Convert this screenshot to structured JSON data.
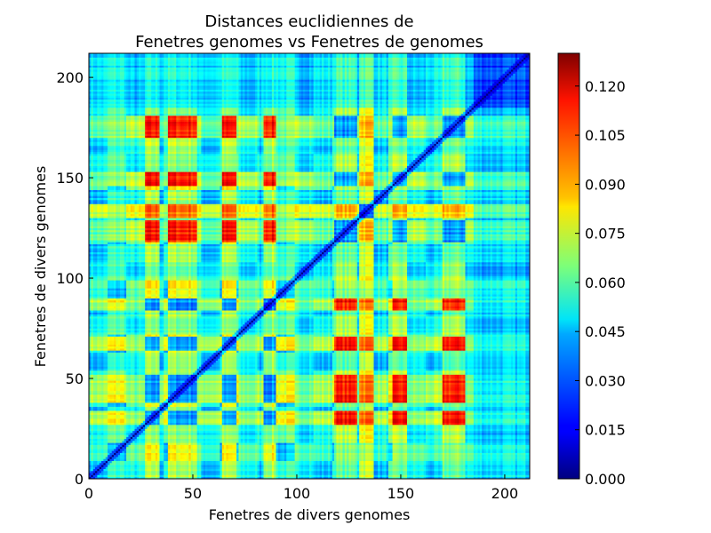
{
  "chart_data": {
    "type": "heatmap",
    "title_lines": [
      "Distances euclidiennes de",
      "Fenetres genomes vs Fenetres de genomes"
    ],
    "xlabel": "Fenetres de divers genomes",
    "ylabel": "Fenetres de divers genomes",
    "xlim": [
      0,
      212
    ],
    "ylim": [
      0,
      212
    ],
    "x_ticks": [
      0,
      50,
      100,
      150,
      200
    ],
    "y_ticks": [
      0,
      50,
      100,
      150,
      200
    ],
    "colorbar": {
      "range": [
        0.0,
        0.13
      ],
      "ticks": [
        "0.000",
        "0.015",
        "0.030",
        "0.045",
        "0.060",
        "0.075",
        "0.090",
        "0.105",
        "0.120"
      ],
      "colormap": "jet"
    },
    "matrix_size": 212,
    "symmetric": true,
    "diagonal_value": 0.0
  }
}
